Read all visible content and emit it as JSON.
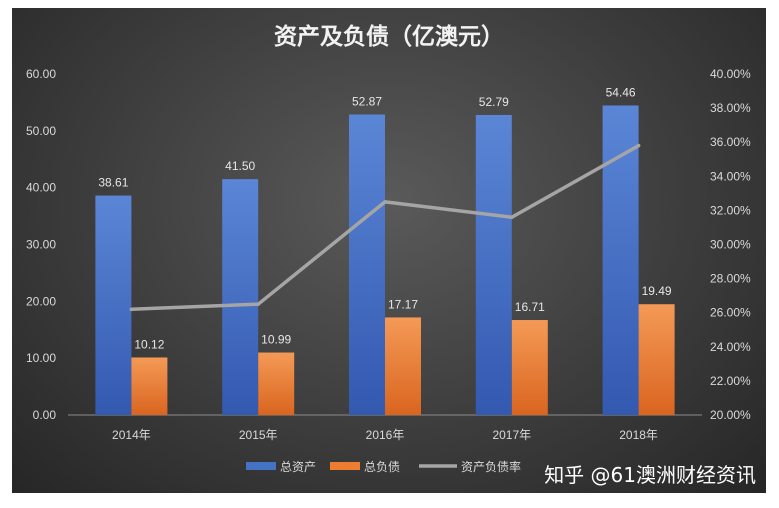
{
  "chart_data": {
    "type": "bar",
    "title": "资产及负债（亿澳元）",
    "categories": [
      "2014年",
      "2015年",
      "2016年",
      "2017年",
      "2018年"
    ],
    "series": [
      {
        "name": "总资产",
        "type": "bar",
        "axis": "left",
        "color": "#4472c4",
        "values": [
          38.61,
          41.5,
          52.87,
          52.79,
          54.46
        ]
      },
      {
        "name": "总负债",
        "type": "bar",
        "axis": "left",
        "color": "#ed7d31",
        "values": [
          10.12,
          10.99,
          17.17,
          16.71,
          19.49
        ]
      },
      {
        "name": "资产负债率",
        "type": "line",
        "axis": "right",
        "color": "#a5a5a5",
        "values": [
          26.2,
          26.5,
          32.5,
          31.6,
          35.8
        ]
      }
    ],
    "y_left": {
      "min": 0,
      "max": 60,
      "ticks": [
        "0.00",
        "10.00",
        "20.00",
        "30.00",
        "40.00",
        "50.00",
        "60.00"
      ]
    },
    "y_right": {
      "min": 20,
      "max": 40,
      "ticks": [
        "20.00%",
        "22.00%",
        "24.00%",
        "26.00%",
        "28.00%",
        "30.00%",
        "32.00%",
        "34.00%",
        "36.00%",
        "38.00%",
        "40.00%"
      ]
    },
    "bar_labels": {
      "总资产": [
        "38.61",
        "41.50",
        "52.87",
        "52.79",
        "54.46"
      ],
      "总负债": [
        "10.12",
        "10.99",
        "17.17",
        "16.71",
        "19.49"
      ]
    },
    "grid": false,
    "legend_position": "bottom"
  },
  "watermark": "知乎 @61澳洲财经资讯"
}
